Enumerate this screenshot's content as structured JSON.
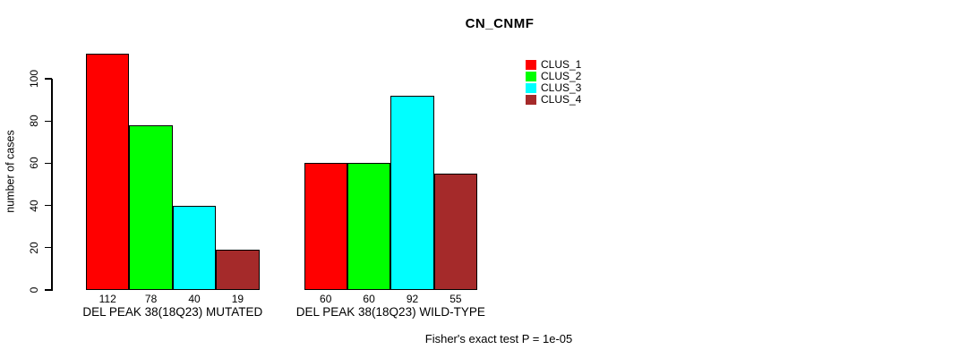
{
  "chart_data": {
    "type": "bar",
    "title": "CN_CNMF",
    "ylabel": "number of cases",
    "xlabel": "",
    "categories": [
      "DEL PEAK 38(18Q23) MUTATED",
      "DEL PEAK 38(18Q23) WILD-TYPE"
    ],
    "series": [
      {
        "name": "CLUS_1",
        "color": "#ff0000",
        "values": [
          112,
          60
        ]
      },
      {
        "name": "CLUS_2",
        "color": "#00ff00",
        "values": [
          78,
          60
        ]
      },
      {
        "name": "CLUS_3",
        "color": "#00ffff",
        "values": [
          40,
          92
        ]
      },
      {
        "name": "CLUS_4",
        "color": "#a52a2a",
        "values": [
          19,
          55
        ]
      }
    ],
    "bar_value_labels": [
      [
        112,
        78,
        40,
        19
      ],
      [
        60,
        60,
        92,
        55
      ]
    ],
    "yticks": [
      0,
      20,
      40,
      60,
      80,
      100
    ],
    "ylim": [
      0,
      115
    ],
    "grid": false,
    "legend": {
      "entries": [
        "CLUS_1",
        "CLUS_2",
        "CLUS_3",
        "CLUS_4"
      ],
      "position": "top-right-inside"
    },
    "annotation": "Fisher's exact test P = 1e-05",
    "colors": {
      "background": "#ffffff",
      "axis": "#000000",
      "bar_border": "#000000"
    }
  }
}
